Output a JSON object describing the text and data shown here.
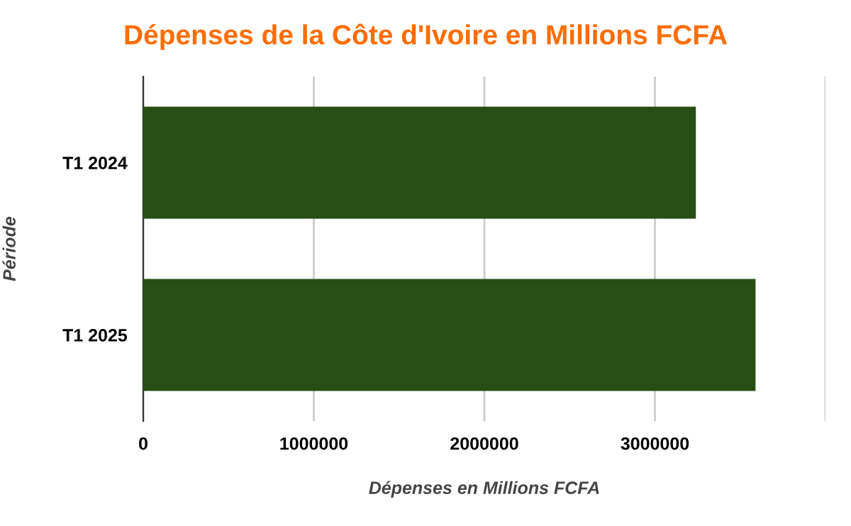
{
  "chart_data": {
    "type": "bar",
    "orientation": "horizontal",
    "title": "Dépenses de la Côte d'Ivoire en Millions FCFA",
    "xlabel": "Dépenses en Millions FCFA",
    "ylabel": "Période",
    "categories": [
      "T1 2024",
      "T1 2025"
    ],
    "values": [
      3240000,
      3590000
    ],
    "color": "#274e13",
    "xlim": [
      0,
      4000000
    ],
    "xticks": [
      0,
      1000000,
      2000000,
      3000000,
      {
        "value": 4000000,
        "label": null
      }
    ],
    "grid": "x",
    "legend": false
  }
}
